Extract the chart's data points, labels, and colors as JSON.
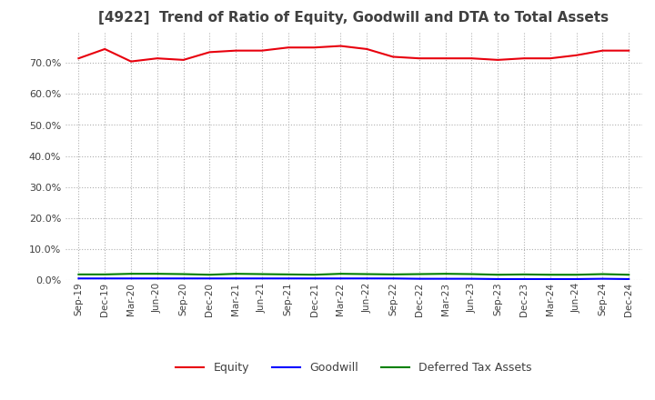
{
  "title": "[4922]  Trend of Ratio of Equity, Goodwill and DTA to Total Assets",
  "x_labels": [
    "Sep-19",
    "Dec-19",
    "Mar-20",
    "Jun-20",
    "Sep-20",
    "Dec-20",
    "Mar-21",
    "Jun-21",
    "Sep-21",
    "Dec-21",
    "Mar-22",
    "Jun-22",
    "Sep-22",
    "Dec-22",
    "Mar-23",
    "Jun-23",
    "Sep-23",
    "Dec-23",
    "Mar-24",
    "Jun-24",
    "Sep-24",
    "Dec-24"
  ],
  "equity": [
    71.5,
    74.5,
    70.5,
    71.5,
    71.0,
    73.5,
    74.0,
    74.0,
    75.0,
    75.0,
    75.5,
    74.5,
    72.0,
    71.5,
    71.5,
    71.5,
    71.0,
    71.5,
    71.5,
    72.5,
    74.0,
    74.0
  ],
  "goodwill": [
    0.5,
    0.5,
    0.5,
    0.5,
    0.5,
    0.5,
    0.5,
    0.5,
    0.5,
    0.5,
    0.5,
    0.5,
    0.5,
    0.4,
    0.4,
    0.4,
    0.3,
    0.3,
    0.3,
    0.3,
    0.4,
    0.3
  ],
  "dta": [
    1.8,
    1.8,
    2.0,
    2.0,
    1.9,
    1.7,
    2.0,
    1.9,
    1.8,
    1.7,
    2.0,
    1.9,
    1.8,
    1.9,
    2.0,
    1.9,
    1.7,
    1.8,
    1.7,
    1.7,
    1.9,
    1.7
  ],
  "equity_color": "#e8000d",
  "goodwill_color": "#0000ff",
  "dta_color": "#008000",
  "ylim": [
    0,
    80
  ],
  "yticks": [
    0,
    10,
    20,
    30,
    40,
    50,
    60,
    70
  ],
  "background_color": "#ffffff",
  "grid_color": "#b0b0b0",
  "title_color": "#404040",
  "legend_labels": [
    "Equity",
    "Goodwill",
    "Deferred Tax Assets"
  ]
}
